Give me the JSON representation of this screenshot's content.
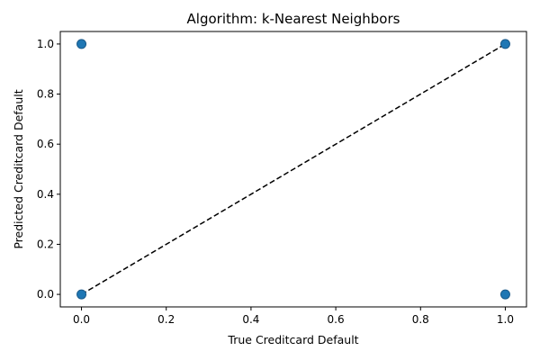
{
  "chart_data": {
    "type": "scatter",
    "title": "Algorithm: k-Nearest Neighbors",
    "xlabel": "True Creditcard Default",
    "ylabel": "Predicted Creditcard Default",
    "xlim": [
      -0.05,
      1.05
    ],
    "ylim": [
      -0.05,
      1.05
    ],
    "xticks": [
      0.0,
      0.2,
      0.4,
      0.6,
      0.8,
      1.0
    ],
    "yticks": [
      0.0,
      0.2,
      0.4,
      0.6,
      0.8,
      1.0
    ],
    "xtick_labels": [
      "0.0",
      "0.2",
      "0.4",
      "0.6",
      "0.8",
      "1.0"
    ],
    "ytick_labels": [
      "0.0",
      "0.2",
      "0.4",
      "0.6",
      "0.8",
      "1.0"
    ],
    "series": [
      {
        "x": [
          0,
          0,
          1,
          1
        ],
        "y": [
          0,
          1,
          0,
          1
        ],
        "color": "#1f77b4",
        "edgecolor": "#1a5a8a"
      }
    ],
    "reference_line": {
      "x": [
        0,
        1
      ],
      "y": [
        0,
        1
      ],
      "style": "dashed",
      "color": "#000000"
    },
    "grid": false,
    "legend": "none"
  }
}
